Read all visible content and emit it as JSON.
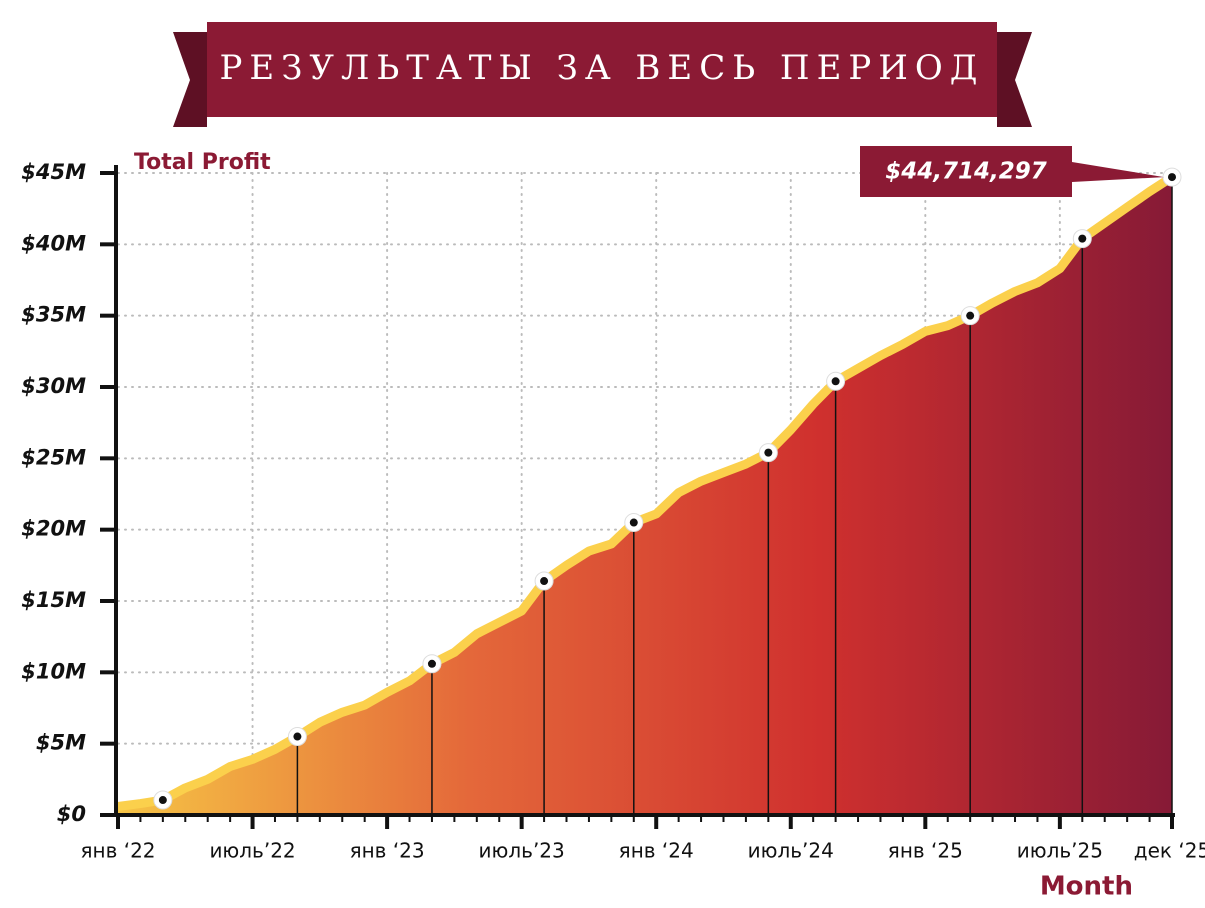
{
  "chart_data": {
    "type": "area",
    "title": "РЕЗУЛЬТАТЫ ЗА ВЕСЬ ПЕРИОД",
    "y_label": "Total Profit",
    "x_label": "Month",
    "categories": [
      "янв ‘22",
      null,
      null,
      null,
      null,
      null,
      "июль’22",
      null,
      null,
      null,
      null,
      null,
      "янв ‘23",
      null,
      null,
      null,
      null,
      null,
      "июль’23",
      null,
      null,
      null,
      null,
      null,
      "янв ‘24",
      null,
      null,
      null,
      null,
      null,
      "июль’24",
      null,
      null,
      null,
      null,
      null,
      "янв ‘25",
      null,
      null,
      null,
      null,
      null,
      "июль’25",
      null,
      null,
      null,
      null,
      "дек ‘25"
    ],
    "values": [
      0.6,
      0.8,
      1.05,
      1.9,
      2.5,
      3.4,
      3.9,
      4.6,
      5.5,
      6.5,
      7.2,
      7.7,
      8.6,
      9.4,
      10.6,
      11.4,
      12.7,
      13.5,
      14.3,
      16.4,
      17.5,
      18.5,
      19.0,
      20.5,
      21.1,
      22.6,
      23.4,
      24.0,
      24.6,
      25.4,
      27.0,
      28.8,
      30.4,
      31.3,
      32.2,
      33.0,
      33.9,
      34.3,
      35.0,
      35.9,
      36.7,
      37.3,
      38.3,
      40.4,
      41.5,
      42.6,
      43.7,
      44.714297
    ],
    "value_labels": [
      null,
      null,
      null,
      null,
      null,
      null,
      null,
      null,
      null,
      null,
      null,
      null,
      null,
      null,
      null,
      null,
      null,
      null,
      null,
      null,
      null,
      null,
      null,
      null,
      null,
      null,
      null,
      null,
      null,
      null,
      null,
      null,
      null,
      null,
      null,
      null,
      null,
      null,
      null,
      null,
      null,
      null,
      null,
      null,
      null,
      null,
      null,
      "$44,714,297"
    ],
    "markers": [
      2,
      8,
      14,
      19,
      23,
      29,
      32,
      38,
      43,
      47
    ],
    "ylim": [
      0,
      45
    ],
    "yticks": [
      {
        "value": 0,
        "label": "$0"
      },
      {
        "value": 5,
        "label": "$5M"
      },
      {
        "value": 10,
        "label": "$10M"
      },
      {
        "value": 15,
        "label": "$15M"
      },
      {
        "value": 20,
        "label": "$20M"
      },
      {
        "value": 25,
        "label": "$25M"
      },
      {
        "value": 30,
        "label": "$30M"
      },
      {
        "value": 35,
        "label": "$35M"
      },
      {
        "value": 40,
        "label": "$40M"
      },
      {
        "value": 45,
        "label": "$45M"
      }
    ],
    "grid": true,
    "line_color": "#fbd04c",
    "fill_gradient": [
      "#f6c445",
      "#e4683a",
      "#cf302e",
      "#861a36"
    ],
    "accent_color": "#8b1a34"
  }
}
